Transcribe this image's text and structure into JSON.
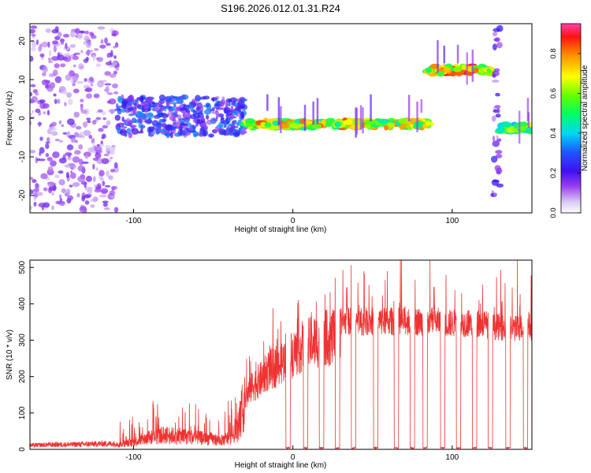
{
  "figure_title": "S196.2026.012.01.31.R24",
  "chart_data": [
    {
      "type": "heatmap",
      "title": "S196.2026.012.01.31.R24",
      "xlabel": "Height of straight line (km)",
      "ylabel": "Frequency (Hz)",
      "xlim": [
        -165,
        150
      ],
      "ylim": [
        -24.5,
        24.5
      ],
      "x_ticks": [
        -100,
        0,
        100
      ],
      "y_ticks": [
        -20,
        -10,
        0,
        10,
        20
      ],
      "colorbar": {
        "label": "Normalized spectral amplitude",
        "range": [
          0.0,
          0.95
        ],
        "ticks": [
          0.0,
          0.2,
          0.4,
          0.6,
          0.8
        ]
      },
      "ridge": [
        {
          "x_range": [
            -165,
            -110
          ],
          "freq_center": 0,
          "freq_spread": 24,
          "amplitude": 0.15,
          "description": "broadband noise"
        },
        {
          "x_range": [
            -110,
            -30
          ],
          "freq_center": 0.5,
          "freq_spread": 5,
          "amplitude": 0.3,
          "description": "diffuse onset"
        },
        {
          "x_range": [
            -30,
            85
          ],
          "freq_center": -1.5,
          "freq_spread": 1,
          "amplitude": 0.85
        },
        {
          "x_range": [
            85,
            125
          ],
          "freq_center": 12.5,
          "freq_spread": 1,
          "amplitude": 0.9
        },
        {
          "x_range": [
            125,
            130
          ],
          "freq_center": 0,
          "freq_spread": 24,
          "amplitude": 0.2,
          "description": "transition gap"
        },
        {
          "x_range": [
            130,
            150
          ],
          "freq_center": -2.5,
          "freq_spread": 1,
          "amplitude": 0.7
        }
      ]
    },
    {
      "type": "line",
      "xlabel": "Height of straight line (km)",
      "ylabel": "SNR (10 * v/v)",
      "xlim": [
        -165,
        150
      ],
      "ylim": [
        0,
        520
      ],
      "x_ticks": [
        -100,
        0,
        100
      ],
      "y_ticks": [
        0,
        100,
        200,
        300,
        400,
        500
      ],
      "series": [
        {
          "name": "SNR",
          "color": "#ee3333",
          "x": [
            -165,
            -150,
            -140,
            -130,
            -120,
            -110,
            -100,
            -90,
            -80,
            -70,
            -60,
            -50,
            -45,
            -40,
            -35,
            -30,
            -25,
            -20,
            -15,
            -10,
            -5,
            0,
            5,
            10,
            15,
            20,
            25,
            30,
            35,
            40,
            45,
            50,
            55,
            60,
            65,
            70,
            75,
            80,
            85,
            90,
            95,
            100,
            105,
            110,
            115,
            120,
            125,
            130,
            135,
            140,
            145,
            150
          ],
          "y": [
            10,
            12,
            12,
            13,
            14,
            14,
            25,
            40,
            50,
            45,
            40,
            35,
            30,
            40,
            60,
            160,
            200,
            220,
            250,
            260,
            280,
            300,
            320,
            330,
            340,
            350,
            350,
            355,
            355,
            355,
            355,
            355,
            355,
            355,
            355,
            355,
            355,
            355,
            355,
            355,
            350,
            350,
            350,
            350,
            350,
            350,
            340,
            340,
            335,
            335,
            340,
            340
          ]
        }
      ],
      "dropouts_x": [
        -3,
        8,
        18,
        28,
        38,
        52,
        65,
        75,
        83,
        94,
        104,
        114,
        124,
        135,
        146
      ],
      "max_spike": 515
    }
  ]
}
